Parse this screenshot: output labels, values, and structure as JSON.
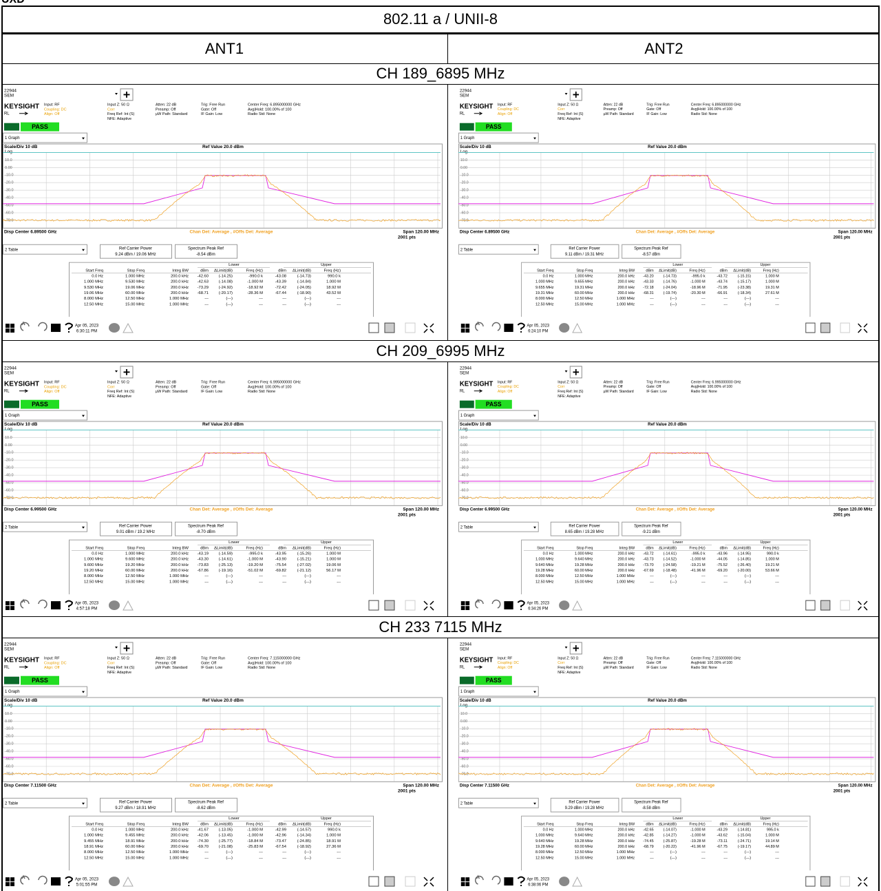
{
  "header": {
    "label": "UXD",
    "title": "802.11 a / UNII-8",
    "columns": [
      "ANT1",
      "ANT2"
    ]
  },
  "analyzer": {
    "id": "22944",
    "mode": "SEM",
    "brand": "KEYSIGHT",
    "input": "Input: RF",
    "coupling": "Coupling: DC",
    "align": "Align: Off",
    "rl": "RL",
    "input_z": "Input Z: 50 Ω",
    "corr": "Corr",
    "freq_ref": "Freq Ref: Int (S)",
    "nfe": "NFE: Adaptive",
    "atten": "Atten: 22 dB",
    "preamp": "Preamp: Off",
    "uw_path": "µW Path: Standard",
    "trig": "Trig: Free Run",
    "gate": "Gate: Off",
    "if_gain": "IF Gain: Low",
    "avg_hold": "Avg|Hold: 100.00% of 100",
    "radio_std": "Radio Std: None",
    "status": "PASS",
    "graph_select": "1 Graph",
    "scale": "Scale/Div 10 dB",
    "ref_value": "Ref Value 20.0 dBm",
    "scale_type": "Log",
    "y_labels": [
      "10.0",
      "0.00",
      "-10.0",
      "-20.0",
      "-30.0",
      "-40.0",
      "-50.0",
      "-60.0",
      "-70.0"
    ],
    "detector": "Chan Det: Average , #Offs Det: Average",
    "span": "Span 120.00 MHz",
    "points": "2001 pts",
    "table_select": "2 Table",
    "ref_carrier_label": "Ref Carrier Power",
    "peak_ref_label": "Spectrum Peak Ref",
    "lower": "Lower",
    "upper": "Upper",
    "columns": [
      "Start Freq",
      "Stop Freq",
      "Integ BW",
      "dBm",
      "ΔLimit(dB)",
      "Freq (Hz)",
      "dBm",
      "ΔLimit(dB)",
      "Freq (Hz)"
    ]
  },
  "sections": [
    {
      "channel": "CH 189_6895 MHz",
      "panels": [
        {
          "center_freq": "Center Freq: 6.895000000 GHz",
          "disp_center": "Disp Center 6.89500 GHz",
          "ref_carrier": "9.24 dBm / 19.06 MHz",
          "peak_ref": "-8.54 dBm",
          "date": "Apr 05, 2023",
          "time": "6:30:11 PM",
          "rows": [
            [
              "0.0 Hz",
              "1.000 MHz",
              "200.0 kHz",
              "-42.60",
              "(-14.25)",
              "-990.0 k",
              "-43.08",
              "(-14.73)",
              "990.0 k"
            ],
            [
              "1.000 MHz",
              "9.530 MHz",
              "200.0 kHz",
              "-42.63",
              "(-14.08)",
              "-1.000 M",
              "-43.39",
              "(-14.84)",
              "1.000 M"
            ],
            [
              "9.530 MHz",
              "19.06 MHz",
              "200.0 kHz",
              "-73.29",
              "(-24.92)",
              "-18.92 M",
              "-72.42",
              "(-24.05)",
              "18.92 M"
            ],
            [
              "19.06 MHz",
              "60.00 MHz",
              "200.0 kHz",
              "-68.71",
              "(-20.17)",
              "-28.36 M",
              "-67.44",
              "(-18.90)",
              "43.52 M"
            ],
            [
              "8.000 MHz",
              "12.50 MHz",
              "1.000 MHz",
              "---",
              "(---)",
              "---",
              "---",
              "(---)",
              "---"
            ],
            [
              "12.50 MHz",
              "15.00 MHz",
              "1.000 MHz",
              "---",
              "(---)",
              "---",
              "---",
              "(---)",
              "---"
            ]
          ]
        },
        {
          "center_freq": "Center Freq: 6.895000000 GHz",
          "disp_center": "Disp Center 6.89500 GHz",
          "ref_carrier": "9.11 dBm / 19.31 MHz",
          "peak_ref": "-8.57 dBm",
          "date": "Apr 05, 2023",
          "time": "6:24:10 PM",
          "rows": [
            [
              "0.0 Hz",
              "1.000 MHz",
              "200.0 kHz",
              "-43.20",
              "(-14.73)",
              "-995.0 k",
              "-43.72",
              "(-15.15)",
              "1.000 M"
            ],
            [
              "1.000 MHz",
              "9.655 MHz",
              "200.0 kHz",
              "-43.33",
              "(-14.76)",
              "-1.000 M",
              "-43.74",
              "(-15.17)",
              "1.000 M"
            ],
            [
              "9.655 MHz",
              "19.31 MHz",
              "200.0 kHz",
              "-72.18",
              "(-24.04)",
              "-18.96 M",
              "-71.95",
              "(-23.38)",
              "19.31 M"
            ],
            [
              "19.31 MHz",
              "60.00 MHz",
              "200.0 kHz",
              "-68.31",
              "(-19.74)",
              "-20.30 M",
              "-66.91",
              "(-18.34)",
              "27.61 M"
            ],
            [
              "8.000 MHz",
              "12.50 MHz",
              "1.000 MHz",
              "---",
              "(---)",
              "---",
              "---",
              "(---)",
              "---"
            ],
            [
              "12.50 MHz",
              "15.00 MHz",
              "1.000 MHz",
              "---",
              "(---)",
              "---",
              "---",
              "(---)",
              "---"
            ]
          ]
        }
      ]
    },
    {
      "channel": "CH 209_6995 MHz",
      "panels": [
        {
          "center_freq": "Center Freq: 6.995000000 GHz",
          "disp_center": "Disp Center 6.99500 GHz",
          "ref_carrier": "9.01 dBm / 19.2 MHz",
          "peak_ref": "-8.70 dBm",
          "date": "Apr 05, 2023",
          "time": "4:57:18 PM",
          "rows": [
            [
              "0.0 Hz",
              "1.000 MHz",
              "200.0 kHz",
              "-43.19",
              "(-14.59)",
              "-995.0 k",
              "-43.95",
              "(-15.26)",
              "1.000 M"
            ],
            [
              "1.000 MHz",
              "9.600 MHz",
              "200.0 kHz",
              "-43.30",
              "(-14.61)",
              "-1.000 M",
              "-43.90",
              "(-15.21)",
              "1.000 M"
            ],
            [
              "9.600 MHz",
              "19.20 MHz",
              "200.0 kHz",
              "-73.83",
              "(-25.13)",
              "-19.20 M",
              "-75.54",
              "(-27.02)",
              "19.06 M"
            ],
            [
              "19.20 MHz",
              "60.00 MHz",
              "200.0 kHz",
              "-67.86",
              "(-19.16)",
              "-51.02 M",
              "-69.82",
              "(-21.12)",
              "56.17 M"
            ],
            [
              "8.000 MHz",
              "12.50 MHz",
              "1.000 MHz",
              "---",
              "(---)",
              "---",
              "---",
              "(---)",
              "---"
            ],
            [
              "12.50 MHz",
              "15.00 MHz",
              "1.000 MHz",
              "---",
              "(---)",
              "---",
              "---",
              "(---)",
              "---"
            ]
          ]
        },
        {
          "center_freq": "Center Freq: 6.995000000 GHz",
          "disp_center": "Disp Center 6.99500 GHz",
          "ref_carrier": "8.65 dBm / 19.28 MHz",
          "peak_ref": "-9.21 dBm",
          "date": "Apr 05, 2023",
          "time": "6:34:26 PM",
          "rows": [
            [
              "0.0 Hz",
              "1.000 MHz",
              "200.0 kHz",
              "-43.72",
              "(-14.61)",
              "-995.0 k",
              "-43.96",
              "(-14.95)",
              "990.0 k"
            ],
            [
              "1.000 MHz",
              "9.640 MHz",
              "200.0 kHz",
              "-43.73",
              "(-14.52)",
              "-1.000 M",
              "-44.05",
              "(-14.85)",
              "1.000 M"
            ],
            [
              "9.640 MHz",
              "19.28 MHz",
              "200.0 kHz",
              "-73.70",
              "(-24.58)",
              "-19.21 M",
              "-75.52",
              "(-26.40)",
              "19.21 M"
            ],
            [
              "19.28 MHz",
              "60.00 MHz",
              "200.0 kHz",
              "-67.69",
              "(-18.48)",
              "-41.96 M",
              "-69.20",
              "(-20.00)",
              "53.66 M"
            ],
            [
              "8.000 MHz",
              "12.50 MHz",
              "1.000 MHz",
              "---",
              "(---)",
              "---",
              "---",
              "(---)",
              "---"
            ],
            [
              "12.50 MHz",
              "15.00 MHz",
              "1.000 MHz",
              "---",
              "(---)",
              "---",
              "---",
              "(---)",
              "---"
            ]
          ]
        }
      ]
    },
    {
      "channel": "CH 233 7115 MHz",
      "panels": [
        {
          "center_freq": "Center Freq: 7.115000000 GHz",
          "disp_center": "Disp Center 7.11500 GHz",
          "ref_carrier": "9.27 dBm / 18.91 MHz",
          "peak_ref": "-8.62 dBm",
          "date": "Apr 05, 2023",
          "time": "5:01:55 PM",
          "rows": [
            [
              "0.0 Hz",
              "1.000 MHz",
              "200.0 kHz",
              "-41.67",
              "(-13.05)",
              "-1.000 M",
              "-42.99",
              "(-14.57)",
              "990.0 k"
            ],
            [
              "1.000 MHz",
              "9.455 MHz",
              "200.0 kHz",
              "-42.06",
              "(-13.45)",
              "-1.000 M",
              "-42.96",
              "(-14.34)",
              "1.000 M"
            ],
            [
              "9.455 MHz",
              "18.91 MHz",
              "200.0 kHz",
              "-74.30",
              "(-25.77)",
              "-18.84 M",
              "-73.47",
              "(-24.85)",
              "18.91 M"
            ],
            [
              "18.91 MHz",
              "60.00 MHz",
              "200.0 kHz",
              "-69.70",
              "(-21.08)",
              "-25.83 M",
              "-67.54",
              "(-18.92)",
              "27.36 M"
            ],
            [
              "8.000 MHz",
              "12.50 MHz",
              "1.000 MHz",
              "---",
              "(---)",
              "---",
              "---",
              "(---)",
              "---"
            ],
            [
              "12.50 MHz",
              "15.00 MHz",
              "1.000 MHz",
              "---",
              "(---)",
              "---",
              "---",
              "(---)",
              "---"
            ]
          ]
        },
        {
          "center_freq": "Center Freq: 7.115000000 GHz",
          "disp_center": "Disp Center 7.11500 GHz",
          "ref_carrier": "9.29 dBm / 19.28 MHz",
          "peak_ref": "-8.58 dBm",
          "date": "Apr 05, 2023",
          "time": "6:38:06 PM",
          "rows": [
            [
              "0.0 Hz",
              "1.000 MHz",
              "200.0 kHz",
              "-42.65",
              "(-14.07)",
              "-1.000 M",
              "-43.29",
              "(-14.81)",
              "995.0 k"
            ],
            [
              "1.000 MHz",
              "9.640 MHz",
              "200.0 kHz",
              "-42.85",
              "(-14.27)",
              "-1.000 M",
              "-43.62",
              "(-15.04)",
              "1.000 M"
            ],
            [
              "9.640 MHz",
              "19.28 MHz",
              "200.0 kHz",
              "-74.45",
              "(-25.87)",
              "-19.28 M",
              "-73.11",
              "(-24.71)",
              "19.14 M"
            ],
            [
              "19.28 MHz",
              "60.00 MHz",
              "200.0 kHz",
              "-68.79",
              "(-20.22)",
              "-41.96 M",
              "-67.75",
              "(-19.17)",
              "44.89 M"
            ],
            [
              "8.000 MHz",
              "12.50 MHz",
              "1.000 MHz",
              "---",
              "(---)",
              "---",
              "---",
              "(---)",
              "---"
            ],
            [
              "12.50 MHz",
              "15.00 MHz",
              "1.000 MHz",
              "---",
              "(---)",
              "---",
              "---",
              "(---)",
              "---"
            ]
          ]
        }
      ]
    }
  ]
}
